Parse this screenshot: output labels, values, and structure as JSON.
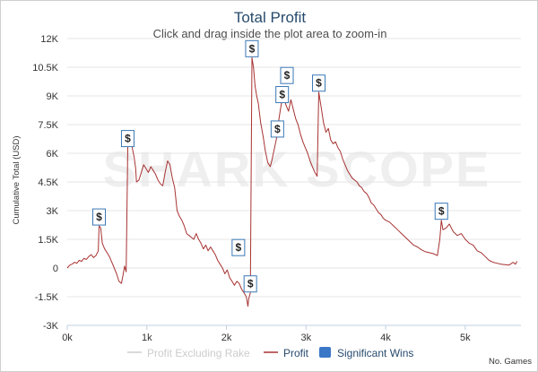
{
  "chart_data": {
    "type": "line",
    "title": "Total Profit",
    "subtitle": "Click and drag inside the plot area to zoom-in",
    "ylabel": "Cumulative Total (USD)",
    "xlabel": "No. Games",
    "watermark": "SHARK SCOPE",
    "xlim": [
      0,
      5700
    ],
    "ylim": [
      -3000,
      12000
    ],
    "y_ticks": [
      {
        "v": 12000,
        "label": "12K"
      },
      {
        "v": 10500,
        "label": "10.5K"
      },
      {
        "v": 9000,
        "label": "9K"
      },
      {
        "v": 7500,
        "label": "7.5K"
      },
      {
        "v": 6000,
        "label": "6K"
      },
      {
        "v": 4500,
        "label": "4.5K"
      },
      {
        "v": 3000,
        "label": "3K"
      },
      {
        "v": 1500,
        "label": "1.5K"
      },
      {
        "v": 0,
        "label": "0"
      },
      {
        "v": -1500,
        "label": "-1.5K"
      },
      {
        "v": -3000,
        "label": "-3K"
      }
    ],
    "x_ticks": [
      {
        "v": 0,
        "label": "0k"
      },
      {
        "v": 1000,
        "label": "1k"
      },
      {
        "v": 2000,
        "label": "2k"
      },
      {
        "v": 3000,
        "label": "3k"
      },
      {
        "v": 4000,
        "label": "4k"
      },
      {
        "v": 5000,
        "label": "5k"
      }
    ],
    "series": [
      {
        "name": "Profit",
        "color": "#a83232",
        "points": [
          [
            0,
            0
          ],
          [
            30,
            150
          ],
          [
            60,
            200
          ],
          [
            90,
            300
          ],
          [
            120,
            250
          ],
          [
            150,
            400
          ],
          [
            180,
            350
          ],
          [
            210,
            500
          ],
          [
            240,
            450
          ],
          [
            270,
            600
          ],
          [
            300,
            700
          ],
          [
            330,
            550
          ],
          [
            360,
            650
          ],
          [
            390,
            900
          ],
          [
            400,
            2200
          ],
          [
            420,
            2100
          ],
          [
            440,
            1300
          ],
          [
            470,
            1000
          ],
          [
            500,
            800
          ],
          [
            530,
            600
          ],
          [
            560,
            300
          ],
          [
            590,
            0
          ],
          [
            620,
            -300
          ],
          [
            650,
            -700
          ],
          [
            680,
            -800
          ],
          [
            700,
            -400
          ],
          [
            720,
            100
          ],
          [
            740,
            -200
          ],
          [
            760,
            6300
          ],
          [
            780,
            7000
          ],
          [
            800,
            6800
          ],
          [
            820,
            6200
          ],
          [
            840,
            5800
          ],
          [
            860,
            5200
          ],
          [
            870,
            4500
          ],
          [
            900,
            4600
          ],
          [
            930,
            5000
          ],
          [
            960,
            5400
          ],
          [
            990,
            5200
          ],
          [
            1020,
            5000
          ],
          [
            1050,
            5300
          ],
          [
            1080,
            5100
          ],
          [
            1110,
            4900
          ],
          [
            1140,
            4600
          ],
          [
            1170,
            4400
          ],
          [
            1200,
            4300
          ],
          [
            1230,
            5000
          ],
          [
            1260,
            5600
          ],
          [
            1290,
            5400
          ],
          [
            1320,
            4700
          ],
          [
            1350,
            4200
          ],
          [
            1380,
            3000
          ],
          [
            1410,
            2700
          ],
          [
            1440,
            2500
          ],
          [
            1470,
            2200
          ],
          [
            1500,
            1800
          ],
          [
            1530,
            1700
          ],
          [
            1560,
            1600
          ],
          [
            1590,
            1500
          ],
          [
            1620,
            1800
          ],
          [
            1650,
            1500
          ],
          [
            1680,
            1300
          ],
          [
            1710,
            1000
          ],
          [
            1740,
            1200
          ],
          [
            1770,
            900
          ],
          [
            1800,
            1100
          ],
          [
            1830,
            900
          ],
          [
            1860,
            700
          ],
          [
            1890,
            400
          ],
          [
            1920,
            200
          ],
          [
            1950,
            0
          ],
          [
            1980,
            -300
          ],
          [
            2010,
            -100
          ],
          [
            2040,
            -500
          ],
          [
            2070,
            -700
          ],
          [
            2100,
            -900
          ],
          [
            2130,
            -700
          ],
          [
            2160,
            -800
          ],
          [
            2190,
            -1100
          ],
          [
            2220,
            -1300
          ],
          [
            2250,
            -1500
          ],
          [
            2270,
            -2000
          ],
          [
            2280,
            -1600
          ],
          [
            2300,
            -1300
          ],
          [
            2320,
            11000
          ],
          [
            2340,
            10500
          ],
          [
            2360,
            9500
          ],
          [
            2380,
            9000
          ],
          [
            2400,
            8600
          ],
          [
            2430,
            7600
          ],
          [
            2460,
            6900
          ],
          [
            2490,
            6100
          ],
          [
            2520,
            5500
          ],
          [
            2550,
            5300
          ],
          [
            2570,
            5600
          ],
          [
            2600,
            6200
          ],
          [
            2630,
            6800
          ],
          [
            2660,
            7800
          ],
          [
            2690,
            8600
          ],
          [
            2720,
            8900
          ],
          [
            2750,
            8500
          ],
          [
            2780,
            8200
          ],
          [
            2810,
            8800
          ],
          [
            2840,
            8300
          ],
          [
            2870,
            7800
          ],
          [
            2900,
            7500
          ],
          [
            2930,
            7000
          ],
          [
            2960,
            6600
          ],
          [
            2990,
            6300
          ],
          [
            3020,
            6000
          ],
          [
            3050,
            5600
          ],
          [
            3080,
            5300
          ],
          [
            3110,
            5000
          ],
          [
            3140,
            4800
          ],
          [
            3160,
            9200
          ],
          [
            3190,
            8400
          ],
          [
            3220,
            7600
          ],
          [
            3250,
            7100
          ],
          [
            3280,
            7300
          ],
          [
            3310,
            6700
          ],
          [
            3340,
            6500
          ],
          [
            3370,
            6600
          ],
          [
            3400,
            6300
          ],
          [
            3430,
            6100
          ],
          [
            3460,
            5700
          ],
          [
            3490,
            5400
          ],
          [
            3520,
            5100
          ],
          [
            3550,
            4900
          ],
          [
            3580,
            4700
          ],
          [
            3610,
            4600
          ],
          [
            3640,
            4500
          ],
          [
            3670,
            4300
          ],
          [
            3700,
            4200
          ],
          [
            3730,
            4000
          ],
          [
            3760,
            3900
          ],
          [
            3790,
            3700
          ],
          [
            3820,
            3400
          ],
          [
            3850,
            3300
          ],
          [
            3880,
            3100
          ],
          [
            3910,
            2900
          ],
          [
            3940,
            2800
          ],
          [
            3970,
            2600
          ],
          [
            4000,
            2500
          ],
          [
            4050,
            2400
          ],
          [
            4100,
            2200
          ],
          [
            4150,
            2000
          ],
          [
            4200,
            1800
          ],
          [
            4250,
            1600
          ],
          [
            4300,
            1400
          ],
          [
            4350,
            1200
          ],
          [
            4400,
            1100
          ],
          [
            4450,
            950
          ],
          [
            4500,
            850
          ],
          [
            4550,
            800
          ],
          [
            4600,
            750
          ],
          [
            4650,
            650
          ],
          [
            4680,
            1500
          ],
          [
            4700,
            2500
          ],
          [
            4720,
            2000
          ],
          [
            4760,
            2100
          ],
          [
            4800,
            2300
          ],
          [
            4850,
            1900
          ],
          [
            4900,
            1700
          ],
          [
            4950,
            1800
          ],
          [
            5000,
            1500
          ],
          [
            5050,
            1300
          ],
          [
            5100,
            1200
          ],
          [
            5150,
            900
          ],
          [
            5200,
            800
          ],
          [
            5250,
            600
          ],
          [
            5300,
            400
          ],
          [
            5350,
            300
          ],
          [
            5400,
            250
          ],
          [
            5450,
            200
          ],
          [
            5500,
            180
          ],
          [
            5550,
            150
          ],
          [
            5600,
            300
          ],
          [
            5630,
            200
          ],
          [
            5650,
            350
          ]
        ]
      }
    ],
    "significant_wins": [
      {
        "x": 400,
        "y": 2200
      },
      {
        "x": 760,
        "y": 6300
      },
      {
        "x": 2150,
        "y": 600
      },
      {
        "x": 2300,
        "y": -1300
      },
      {
        "x": 2320,
        "y": 11000
      },
      {
        "x": 2640,
        "y": 6800
      },
      {
        "x": 2700,
        "y": 8600
      },
      {
        "x": 2760,
        "y": 9600
      },
      {
        "x": 3160,
        "y": 9200
      },
      {
        "x": 4700,
        "y": 2500
      }
    ],
    "badge_symbol": "$",
    "legend": [
      {
        "label": "Profit Excluding Rake",
        "type": "line",
        "color": "#cccccc",
        "text_color": "#cccccc"
      },
      {
        "label": "Profit",
        "type": "line",
        "color": "#a83232",
        "text_color": "#274b6d"
      },
      {
        "label": "Significant Wins",
        "type": "box",
        "color": "#3a78c7",
        "text_color": "#274b6d"
      }
    ]
  }
}
